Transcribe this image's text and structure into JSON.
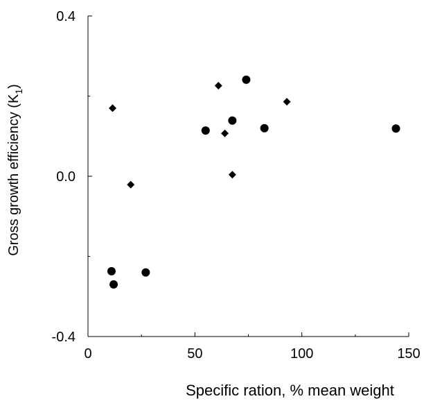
{
  "chart_data": {
    "type": "scatter",
    "title": "",
    "xlabel": "Specific ration, %  mean weight",
    "ylabel": "Gross growth efficiency  (K",
    "ylabel_subscript": "1",
    "ylabel_suffix": ")",
    "xlim": [
      0,
      150
    ],
    "ylim": [
      -0.4,
      0.4
    ],
    "x_ticks": [
      0,
      50,
      100,
      150
    ],
    "x_tick_labels": [
      "0",
      "50",
      "100",
      "150"
    ],
    "x_minor_ticks": [
      25,
      75,
      125
    ],
    "y_ticks": [
      -0.4,
      0.0,
      0.4
    ],
    "y_tick_labels": [
      "-0.4",
      "0.0",
      "0.4"
    ],
    "y_minor_ticks": [
      -0.2,
      0.2
    ],
    "grid": false,
    "legend": "none",
    "series": [
      {
        "marker": "circle",
        "color": "#000000",
        "points": [
          {
            "x": 11,
            "y": -0.237
          },
          {
            "x": 12,
            "y": -0.27
          },
          {
            "x": 27,
            "y": -0.24
          },
          {
            "x": 55,
            "y": 0.114
          },
          {
            "x": 67.5,
            "y": 0.139
          },
          {
            "x": 74,
            "y": 0.241
          },
          {
            "x": 82.5,
            "y": 0.12
          },
          {
            "x": 144,
            "y": 0.119
          }
        ]
      },
      {
        "marker": "diamond",
        "color": "#000000",
        "points": [
          {
            "x": 11.5,
            "y": 0.17
          },
          {
            "x": 20,
            "y": -0.021
          },
          {
            "x": 61,
            "y": 0.226
          },
          {
            "x": 64,
            "y": 0.107
          },
          {
            "x": 67.5,
            "y": 0.004
          },
          {
            "x": 93,
            "y": 0.186
          }
        ]
      }
    ]
  }
}
